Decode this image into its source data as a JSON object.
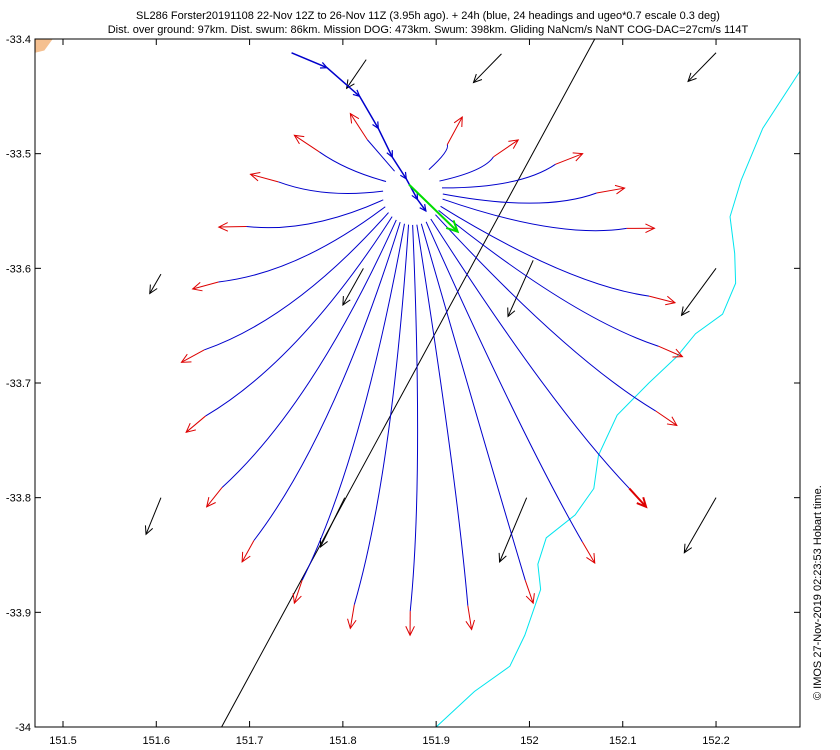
{
  "chart_data": {
    "type": "quiver",
    "title_line1": "SL286 Forster20191108 22-Nov 12Z to 26-Nov 11Z (3.95h ago). + 24h (blue, 24 headings and ugeo*0.7 escale 0.3 deg)",
    "title_line2": "Dist. over ground: 97km. Dist. swum: 86km. Mission DOG: 473km. Swum: 398km. Gliding NaNcm/s NaNT COG-DAC=27cm/s 114T",
    "credit": "© IMOS 27-Nov-2019 02:23:53 Hobart time.",
    "xlim": [
      151.47,
      152.29
    ],
    "ylim": [
      -34.0,
      -33.4
    ],
    "xticks": [
      151.5,
      151.6,
      151.7,
      151.8,
      151.9,
      152.0,
      152.1,
      152.2
    ],
    "xticklabels": [
      "151.5",
      "151.6",
      "151.7",
      "151.8",
      "151.9",
      "152",
      "152.1",
      "152.2"
    ],
    "yticks": [
      -33.4,
      -33.5,
      -33.6,
      -33.7,
      -33.8,
      -33.9,
      -34.0
    ],
    "yticklabels": [
      "-33.4",
      "-33.5",
      "-33.6",
      "-33.7",
      "-33.8",
      "-33.9",
      "-34"
    ],
    "colors": {
      "track": "#0000cc",
      "heading_arrow": "#dd0000",
      "current_arrow": "#00dd00",
      "geo_current": "#000000",
      "isobath": "#00e5ee",
      "land": "#f5c090"
    },
    "glider_origin": [
      151.875,
      -33.536
    ],
    "heading_endpoints": [
      [
        151.928,
        -33.468
      ],
      [
        151.988,
        -33.488
      ],
      [
        152.057,
        -33.5
      ],
      [
        152.102,
        -33.53
      ],
      [
        152.134,
        -33.565
      ],
      [
        152.156,
        -33.63
      ],
      [
        152.164,
        -33.677
      ],
      [
        152.158,
        -33.737
      ],
      [
        152.125,
        -33.808
      ],
      [
        152.07,
        -33.857
      ],
      [
        152.004,
        -33.892
      ],
      [
        151.938,
        -33.915
      ],
      [
        151.872,
        -33.92
      ],
      [
        151.808,
        -33.914
      ],
      [
        151.748,
        -33.892
      ],
      [
        151.692,
        -33.856
      ],
      [
        151.654,
        -33.808
      ],
      [
        151.632,
        -33.743
      ],
      [
        151.627,
        -33.682
      ],
      [
        151.639,
        -33.618
      ],
      [
        151.667,
        -33.564
      ],
      [
        151.701,
        -33.518
      ],
      [
        151.748,
        -33.484
      ],
      [
        151.808,
        -33.465
      ]
    ],
    "dac_arrow": {
      "from": [
        151.871,
        -33.527
      ],
      "to": [
        151.923,
        -33.568
      ]
    },
    "track_path": [
      [
        151.745,
        -33.412
      ],
      [
        151.783,
        -33.425
      ],
      [
        151.818,
        -33.45
      ],
      [
        151.838,
        -33.478
      ],
      [
        151.853,
        -33.503
      ],
      [
        151.868,
        -33.522
      ],
      [
        151.88,
        -33.54
      ],
      [
        151.889,
        -33.55
      ]
    ],
    "geo_currents": [
      {
        "base": [
          151.825,
          -33.418
        ],
        "tip": [
          151.804,
          -33.443
        ]
      },
      {
        "base": [
          151.97,
          -33.413
        ],
        "tip": [
          151.94,
          -33.438
        ]
      },
      {
        "base": [
          152.2,
          -33.412
        ],
        "tip": [
          152.17,
          -33.437
        ]
      },
      {
        "base": [
          151.605,
          -33.605
        ],
        "tip": [
          151.593,
          -33.622
        ]
      },
      {
        "base": [
          151.822,
          -33.6
        ],
        "tip": [
          151.8,
          -33.632
        ]
      },
      {
        "base": [
          152.004,
          -33.593
        ],
        "tip": [
          151.977,
          -33.642
        ]
      },
      {
        "base": [
          152.2,
          -33.6
        ],
        "tip": [
          152.163,
          -33.641
        ]
      },
      {
        "base": [
          151.605,
          -33.8
        ],
        "tip": [
          151.589,
          -33.832
        ]
      },
      {
        "base": [
          151.802,
          -33.8
        ],
        "tip": [
          151.776,
          -33.843
        ]
      },
      {
        "base": [
          151.997,
          -33.8
        ],
        "tip": [
          151.968,
          -33.856
        ]
      },
      {
        "base": [
          152.2,
          -33.8
        ],
        "tip": [
          152.166,
          -33.848
        ]
      }
    ],
    "straight_line": [
      [
        151.67,
        -34.0
      ],
      [
        152.07,
        -33.4
      ]
    ],
    "isobath": [
      [
        152.29,
        -33.428
      ],
      [
        152.25,
        -33.478
      ],
      [
        152.227,
        -33.523
      ],
      [
        152.215,
        -33.555
      ],
      [
        152.22,
        -33.587
      ],
      [
        152.221,
        -33.613
      ],
      [
        152.207,
        -33.64
      ],
      [
        152.178,
        -33.657
      ],
      [
        152.158,
        -33.677
      ],
      [
        152.128,
        -33.7
      ],
      [
        152.094,
        -33.728
      ],
      [
        152.074,
        -33.763
      ],
      [
        152.069,
        -33.792
      ],
      [
        152.049,
        -33.815
      ],
      [
        152.018,
        -33.835
      ],
      [
        152.009,
        -33.858
      ],
      [
        152.012,
        -33.88
      ],
      [
        151.995,
        -33.92
      ],
      [
        151.979,
        -33.947
      ],
      [
        151.941,
        -33.969
      ],
      [
        151.9,
        -34.0
      ]
    ],
    "land_patch": [
      [
        151.47,
        -33.4
      ],
      [
        151.489,
        -33.4
      ],
      [
        151.48,
        -33.41
      ],
      [
        151.47,
        -33.412
      ]
    ]
  }
}
